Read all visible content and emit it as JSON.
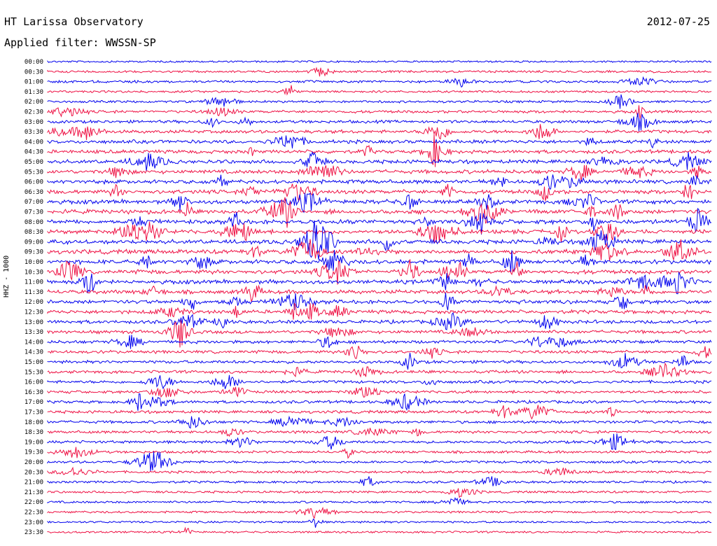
{
  "header": {
    "title": "HT Larissa Observatory",
    "date": "2012-07-25",
    "filter": "Applied filter: WWSSN-SP",
    "channel": "HHZ - 1000"
  },
  "chart_data": {
    "type": "line",
    "title": "HT Larissa Observatory",
    "subtitle": "Applied filter: WWSSN-SP",
    "ylabel": "HHZ - 1000",
    "date": "2012-07-25",
    "tick_labels": [
      "00:00",
      "00:30",
      "01:00",
      "01:30",
      "02:00",
      "02:30",
      "03:00",
      "03:30",
      "04:00",
      "04:30",
      "05:00",
      "05:30",
      "06:00",
      "06:30",
      "07:00",
      "07:30",
      "08:00",
      "08:30",
      "09:00",
      "09:30",
      "10:00",
      "10:30",
      "11:00",
      "11:30",
      "12:00",
      "12:30",
      "13:00",
      "13:30",
      "14:00",
      "14:30",
      "15:00",
      "15:30",
      "16:00",
      "16:30",
      "17:00",
      "17:30",
      "18:00",
      "18:30",
      "19:00",
      "19:30",
      "20:00",
      "20:30",
      "21:00",
      "21:30",
      "22:00",
      "22:30",
      "23:00",
      "23:30"
    ],
    "colors": [
      "#0000ee",
      "#ee1144"
    ],
    "activity_level": [
      0.12,
      0.22,
      0.3,
      0.22,
      0.28,
      0.38,
      0.45,
      0.55,
      0.6,
      0.62,
      0.7,
      0.72,
      0.72,
      0.75,
      0.8,
      0.82,
      0.85,
      0.85,
      0.85,
      0.82,
      0.82,
      0.8,
      0.75,
      0.72,
      0.7,
      0.65,
      0.6,
      0.55,
      0.5,
      0.48,
      0.45,
      0.45,
      0.42,
      0.4,
      0.42,
      0.42,
      0.4,
      0.38,
      0.38,
      0.32,
      0.3,
      0.28,
      0.26,
      0.22,
      0.2,
      0.18,
      0.16,
      0.14
    ],
    "grid": false,
    "legend": "none"
  }
}
